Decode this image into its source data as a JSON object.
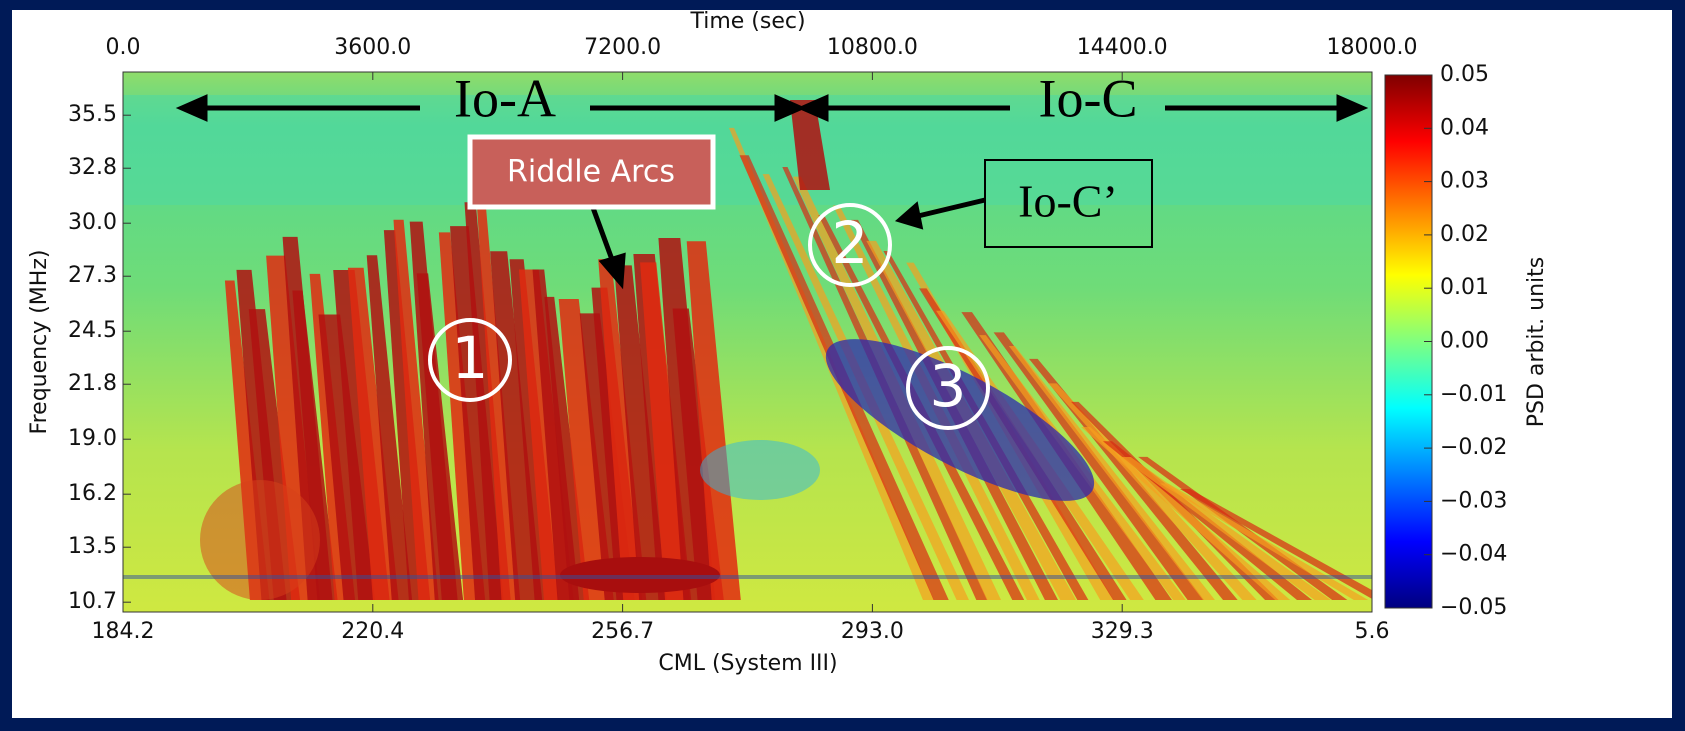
{
  "chart_data": {
    "type": "heatmap",
    "x_label": "Time (sec)",
    "x2_label": "CML (System III)",
    "y_label": "Frequency (MHz)",
    "colorbar_label": "PSD arbit. units",
    "colormap": "jet",
    "xlim": [
      0,
      18000
    ],
    "xticks": [
      {
        "value": 0,
        "label": "0.0"
      },
      {
        "value": 3600,
        "label": "3600.0"
      },
      {
        "value": 7200,
        "label": "7200.0"
      },
      {
        "value": 10800,
        "label": "10800.0"
      },
      {
        "value": 14400,
        "label": "14400.0"
      },
      {
        "value": 18000,
        "label": "18000.0"
      }
    ],
    "x2ticks": [
      184.2,
      220.4,
      256.7,
      {
        "value": 293,
        "label": "293.0"
      },
      329.3,
      5.6
    ],
    "ylim": [
      10.2,
      37.7
    ],
    "yticks": [
      10.7,
      13.5,
      16.2,
      {
        "value": 19,
        "label": "19.0"
      },
      21.8,
      24.5,
      27.3,
      {
        "value": 30,
        "label": "30.0"
      },
      32.8,
      35.5
    ],
    "clim": [
      -0.05,
      0.05
    ],
    "cticks": [
      {
        "value": -0.05,
        "label": "−0.05"
      },
      {
        "value": -0.04,
        "label": "−0.04"
      },
      {
        "value": -0.03,
        "label": "−0.03"
      },
      {
        "value": -0.02,
        "label": "−0.02"
      },
      {
        "value": -0.01,
        "label": "−0.01"
      },
      {
        "value": 0,
        "label": "0.00"
      },
      0.01,
      0.02,
      0.03,
      0.04,
      0.05
    ],
    "annotations": [
      "Io-A",
      "Io-C",
      "Riddle Arcs",
      "Io-C’",
      "1",
      "2",
      "3"
    ]
  }
}
